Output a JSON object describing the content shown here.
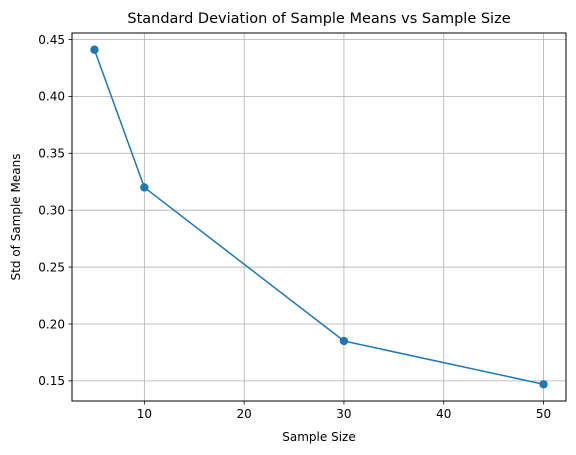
{
  "chart_data": {
    "type": "line",
    "title": "Standard Deviation of Sample Means vs Sample Size",
    "xlabel": "Sample Size",
    "ylabel": "Std of Sample Means",
    "x": [
      5,
      10,
      30,
      50
    ],
    "series": [
      {
        "values": [
          0.441,
          0.32,
          0.185,
          0.147
        ],
        "color": "#1f77b4",
        "marker": "circle"
      }
    ],
    "xlim": [
      2.75,
      52.25
    ],
    "ylim": [
      0.1323,
      0.4557
    ],
    "xticks": [
      10,
      20,
      30,
      40,
      50
    ],
    "xtick_labels": [
      "10",
      "20",
      "30",
      "40",
      "50"
    ],
    "yticks": [
      0.15,
      0.2,
      0.25,
      0.3,
      0.35,
      0.4,
      0.45
    ],
    "ytick_labels": [
      "0.15",
      "0.20",
      "0.25",
      "0.30",
      "0.35",
      "0.40",
      "0.45"
    ],
    "grid": true,
    "grid_color": "#b0b0b0"
  }
}
